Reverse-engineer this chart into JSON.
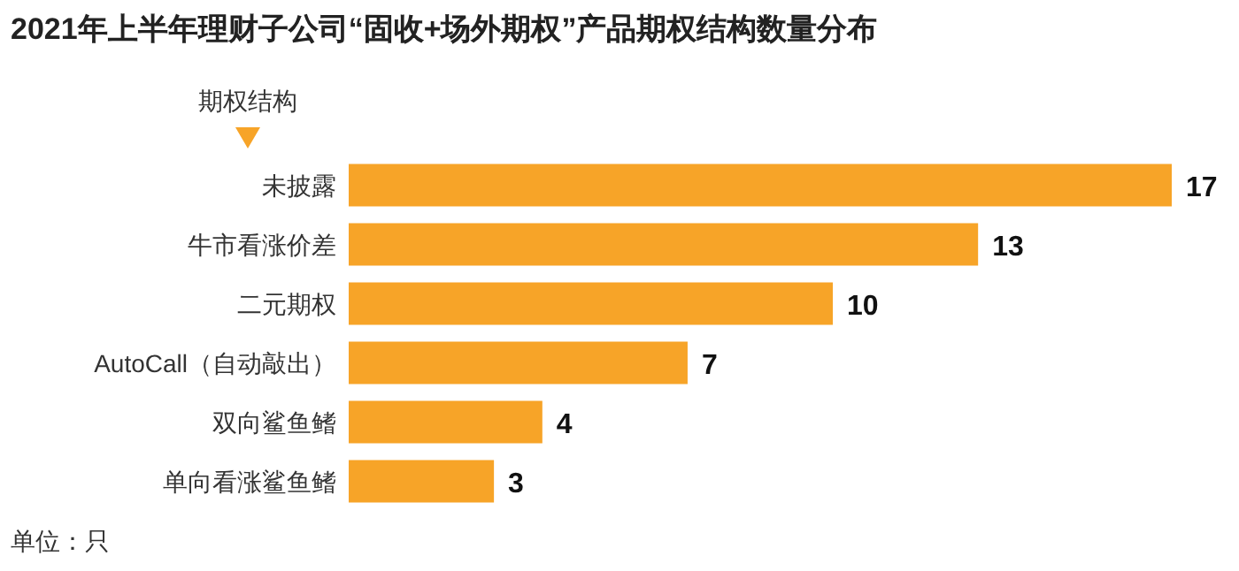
{
  "chart_data": {
    "type": "bar",
    "orientation": "horizontal",
    "title": "2021年上半年理财子公司“固收+场外期权”产品期权结构数量分布",
    "ylabel": "期权结构",
    "categories": [
      "未披露",
      "牛市看涨价差",
      "二元期权",
      "AutoCall（自动敲出）",
      "双向鲨鱼鳍",
      "单向看涨鲨鱼鳍"
    ],
    "values": [
      17,
      13,
      10,
      7,
      4,
      3
    ],
    "color": "#f7a428",
    "data_labels": true,
    "annotations": [
      "单位：只"
    ]
  }
}
